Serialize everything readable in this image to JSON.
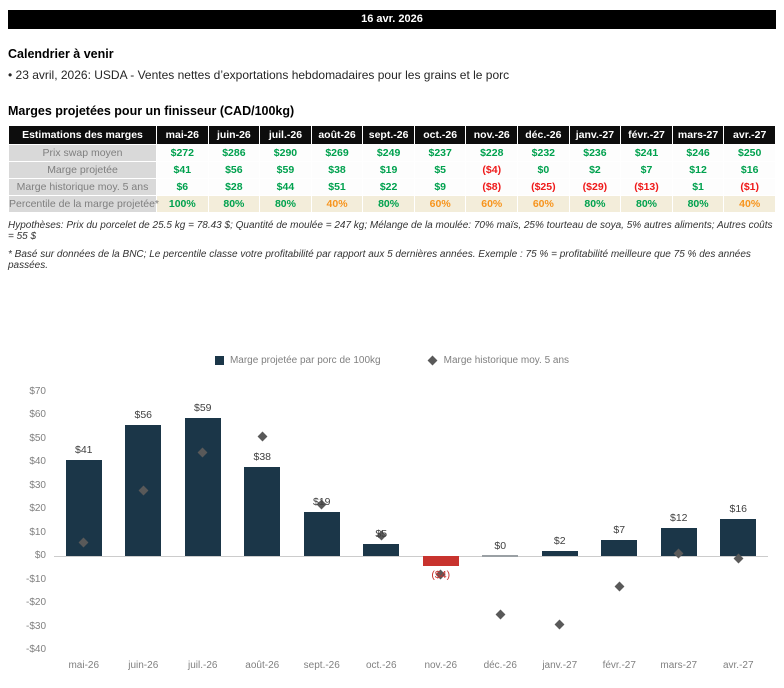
{
  "banner": {
    "date": "16 avr. 2026"
  },
  "calendar": {
    "title": "Calendrier à venir",
    "items": [
      "• 23 avril, 2026: USDA - Ventes nettes d’exportations hebdomadaires pour les grains et le porc"
    ]
  },
  "table": {
    "title": "Marges projetées pour un finisseur (CAD/100kg)",
    "columns": [
      "Estimations des marges",
      "mai-26",
      "juin-26",
      "juil.-26",
      "août-26",
      "sept.-26",
      "oct.-26",
      "nov.-26",
      "déc.-26",
      "janv.-27",
      "févr.-27",
      "mars-27",
      "avr.-27"
    ],
    "rows": [
      {
        "label": "Prix swap moyen",
        "values": [
          "$272",
          "$286",
          "$290",
          "$269",
          "$249",
          "$237",
          "$228",
          "$232",
          "$236",
          "$241",
          "$246",
          "$250"
        ],
        "colors": [
          "g",
          "g",
          "g",
          "g",
          "g",
          "g",
          "g",
          "g",
          "g",
          "g",
          "g",
          "g"
        ],
        "bg": "plain"
      },
      {
        "label": "Marge projetée",
        "values": [
          "$41",
          "$56",
          "$59",
          "$38",
          "$19",
          "$5",
          "($4)",
          "$0",
          "$2",
          "$7",
          "$12",
          "$16"
        ],
        "colors": [
          "g",
          "g",
          "g",
          "g",
          "g",
          "g",
          "r",
          "g",
          "g",
          "g",
          "g",
          "g"
        ],
        "bg": "plain"
      },
      {
        "label": "Marge historique moy. 5 ans",
        "values": [
          "$6",
          "$28",
          "$44",
          "$51",
          "$22",
          "$9",
          "($8)",
          "($25)",
          "($29)",
          "($13)",
          "$1",
          "($1)"
        ],
        "colors": [
          "g",
          "g",
          "g",
          "g",
          "g",
          "g",
          "r",
          "r",
          "r",
          "r",
          "g",
          "r"
        ],
        "bg": "plain"
      },
      {
        "label": "Percentile de la marge projetée*",
        "values": [
          "100%",
          "80%",
          "80%",
          "40%",
          "80%",
          "60%",
          "60%",
          "60%",
          "80%",
          "80%",
          "80%",
          "40%"
        ],
        "colors": [
          "g",
          "g",
          "g",
          "o",
          "g",
          "o",
          "o",
          "o",
          "g",
          "g",
          "g",
          "o"
        ],
        "bg": "beige"
      }
    ],
    "assumptions": "Hypothèses: Prix du porcelet de 25.5 kg = 78.43 $; Quantité de moulée = 247 kg; Mélange de la moulée: 70% maïs, 25% tourteau de soya, 5% autres aliments; Autres coûts = 55 $",
    "percentile_note": "* Basé sur données de la BNC; Le percentile classe votre profitabilité par rapport aux 5 dernières années. Exemple : 75 % = profitabilité meilleure que 75 % des années passées."
  },
  "chart_data": {
    "type": "bar",
    "categories": [
      "mai-26",
      "juin-26",
      "juil.-26",
      "août-26",
      "sept.-26",
      "oct.-26",
      "nov.-26",
      "déc.-26",
      "janv.-27",
      "févr.-27",
      "mars-27",
      "avr.-27"
    ],
    "series": [
      {
        "name": "Marge projetée par porc de 100kg",
        "type": "bar",
        "values": [
          41,
          56,
          59,
          38,
          19,
          5,
          -4,
          0,
          2,
          7,
          12,
          16
        ],
        "labels": [
          "$41",
          "$56",
          "$59",
          "$38",
          "$19",
          "$5",
          "($4)",
          "$0",
          "$2",
          "$7",
          "$12",
          "$16"
        ]
      },
      {
        "name": "Marge historique moy. 5 ans",
        "type": "scatter",
        "marker": "diamond",
        "values": [
          6,
          28,
          44,
          51,
          22,
          9,
          -8,
          -25,
          -29,
          -13,
          1,
          -1
        ]
      }
    ],
    "ylim": [
      -40,
      70
    ],
    "ytick_step": 10,
    "grid": false,
    "legend_position": "top-center",
    "colors": {
      "bar_positive": "#1b3648",
      "bar_negative": "#c8332e",
      "bar_zero": "#9aa0a4",
      "marker": "#595959",
      "label": "#404040",
      "label_negative": "#c8332e",
      "axis_text": "#808080",
      "zero_line": "#cccccc"
    }
  }
}
